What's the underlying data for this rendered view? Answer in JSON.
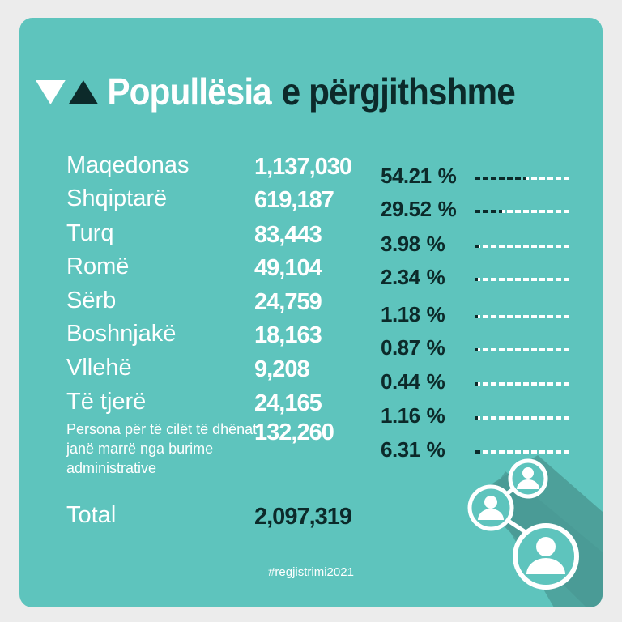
{
  "title": {
    "part1": "Popullësia",
    "part2": "e përgjithshme"
  },
  "chart_data": {
    "type": "table",
    "columns": [
      "",
      "",
      ""
    ],
    "rows": [
      {
        "label": "Maqedonas",
        "value": "1,137,030",
        "percent": "54.21",
        "share": 0.5421
      },
      {
        "label": "Shqiptarë",
        "value": "619,187",
        "percent": "29.52",
        "share": 0.2952
      },
      {
        "label": "Turq",
        "value": "83,443",
        "percent": "3.98",
        "share": 0.0398
      },
      {
        "label": "Romë",
        "value": "49,104",
        "percent": "2.34",
        "share": 0.0234
      },
      {
        "label": "Sërb",
        "value": "24,759",
        "percent": "1.18",
        "share": 0.0118
      },
      {
        "label": "Boshnjakë",
        "value": "18,163",
        "percent": "0.87",
        "share": 0.0087
      },
      {
        "label": "Vllehë",
        "value": "9,208",
        "percent": "0.44",
        "share": 0.0044
      },
      {
        "label": "Të tjerë",
        "value": "24,165",
        "percent": "1.16",
        "share": 0.0116
      },
      {
        "label": "Persona për të cilët të dhënat janë marrë nga burime administrative",
        "value": "132,260",
        "percent": "6.31",
        "share": 0.0631
      }
    ],
    "total": {
      "label": "Total",
      "value": "2,097,319"
    }
  },
  "percent_symbol": "%",
  "hashtag": "#regjistrimi2021",
  "colors": {
    "background": "#5ec4bd",
    "dark": "#0c2a2a",
    "light": "#ffffff",
    "shadow": "#4a9a94"
  },
  "icons": [
    "triangle-down-icon",
    "triangle-up-icon",
    "people-network-icon"
  ]
}
